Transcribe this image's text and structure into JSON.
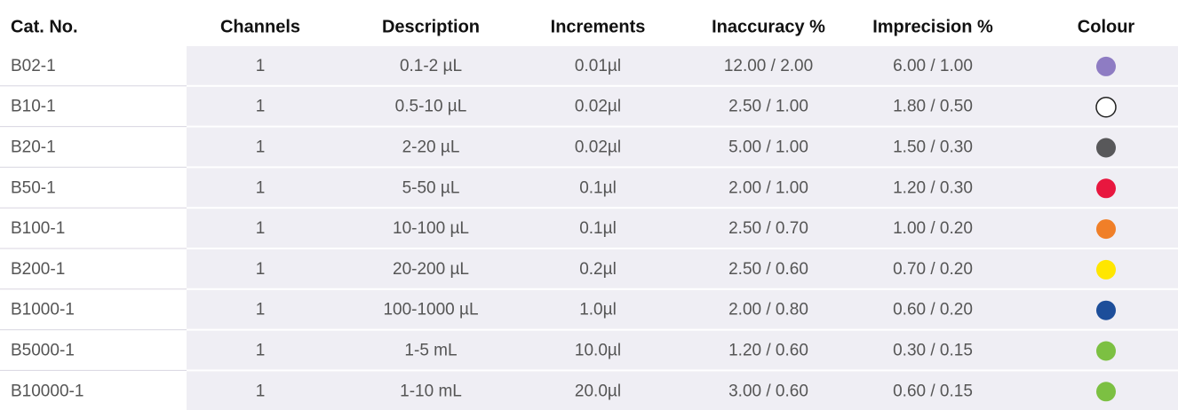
{
  "table": {
    "header": [
      "Cat. No.",
      "Channels",
      "Description",
      "Increments",
      "Inaccuracy %",
      "Imprecision %",
      "Colour"
    ],
    "rows": [
      [
        "B02-1",
        "1",
        "0.1-2 µL",
        "0.01µl",
        "12.00 / 2.00",
        "6.00 / 1.00"
      ],
      [
        "B10-1",
        "1",
        "0.5-10 µL",
        "0.02µl",
        "2.50 / 1.00",
        "1.80 / 0.50"
      ],
      [
        "B20-1",
        "1",
        "2-20 µL",
        "0.02µl",
        "5.00 / 1.00",
        "1.50 / 0.30"
      ],
      [
        "B50-1",
        "1",
        "5-50 µL",
        "0.1µl",
        "2.00 / 1.00",
        "1.20 / 0.30"
      ],
      [
        "B100-1",
        "1",
        "10-100 µL",
        "0.1µl",
        "2.50 / 0.70",
        "1.00 / 0.20"
      ],
      [
        "B200-1",
        "1",
        "20-200 µL",
        "0.2µl",
        "2.50 / 0.60",
        "0.70 / 0.20"
      ],
      [
        "B1000-1",
        "1",
        "100-1000 µL",
        "1.0µl",
        "2.00 / 0.80",
        "0.60 / 0.20"
      ],
      [
        "B5000-1",
        "1",
        "1-5 mL",
        "10.0µl",
        "1.20 / 0.60",
        "0.30 / 0.15"
      ],
      [
        "B10000-1",
        "1",
        "1-10 mL",
        "20.0µl",
        "3.00 / 0.60",
        "0.60 / 0.15"
      ]
    ],
    "colours": [
      "#8e7cc3",
      "#ffffff",
      "#58585a",
      "#e8173f",
      "#f07f28",
      "#ffe600",
      "#1d4e9a",
      "#7cc042",
      "#7cc042"
    ]
  }
}
